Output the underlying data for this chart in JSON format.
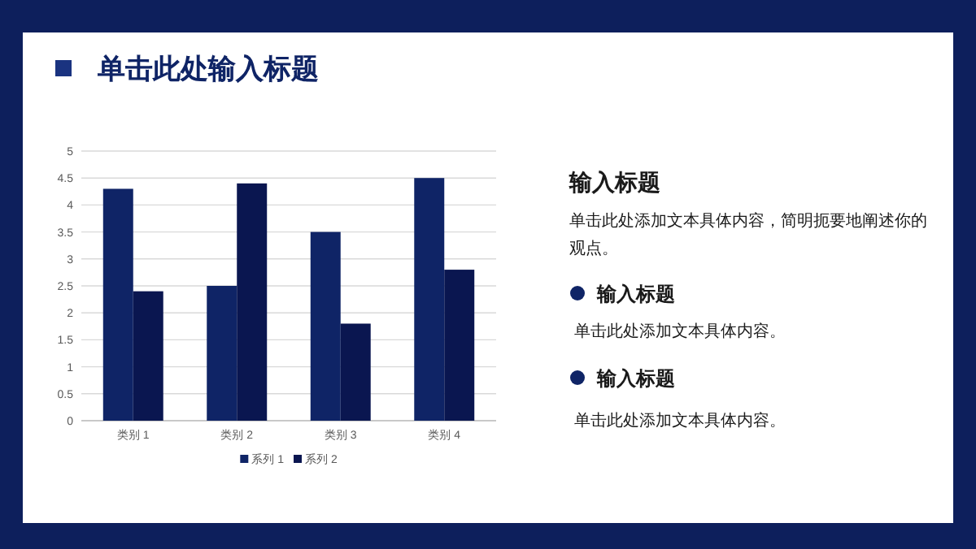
{
  "chart_data": {
    "type": "bar",
    "title": "单击此处输入标题",
    "categories": [
      "类别 1",
      "类别 2",
      "类别 3",
      "类别 4"
    ],
    "series": [
      {
        "name": "系列 1",
        "color": "#0f2466",
        "values": [
          4.3,
          2.5,
          3.5,
          4.5
        ]
      },
      {
        "name": "系列 2",
        "color": "#0a1650",
        "values": [
          2.4,
          4.4,
          1.8,
          2.8
        ]
      }
    ],
    "ylim": [
      0,
      5
    ],
    "yticks": [
      0,
      0.5,
      1,
      1.5,
      2,
      2.5,
      3,
      3.5,
      4,
      4.5,
      5
    ],
    "grid": "y",
    "legend": "bottom",
    "annotations": [
      "输入标题",
      "单击此处添加文本具体内容，简明扼要地阐述你的观点。",
      "输入标题",
      "单击此处添加文本具体内容。",
      "输入标题",
      "单击此处添加文本具体内容。"
    ]
  }
}
